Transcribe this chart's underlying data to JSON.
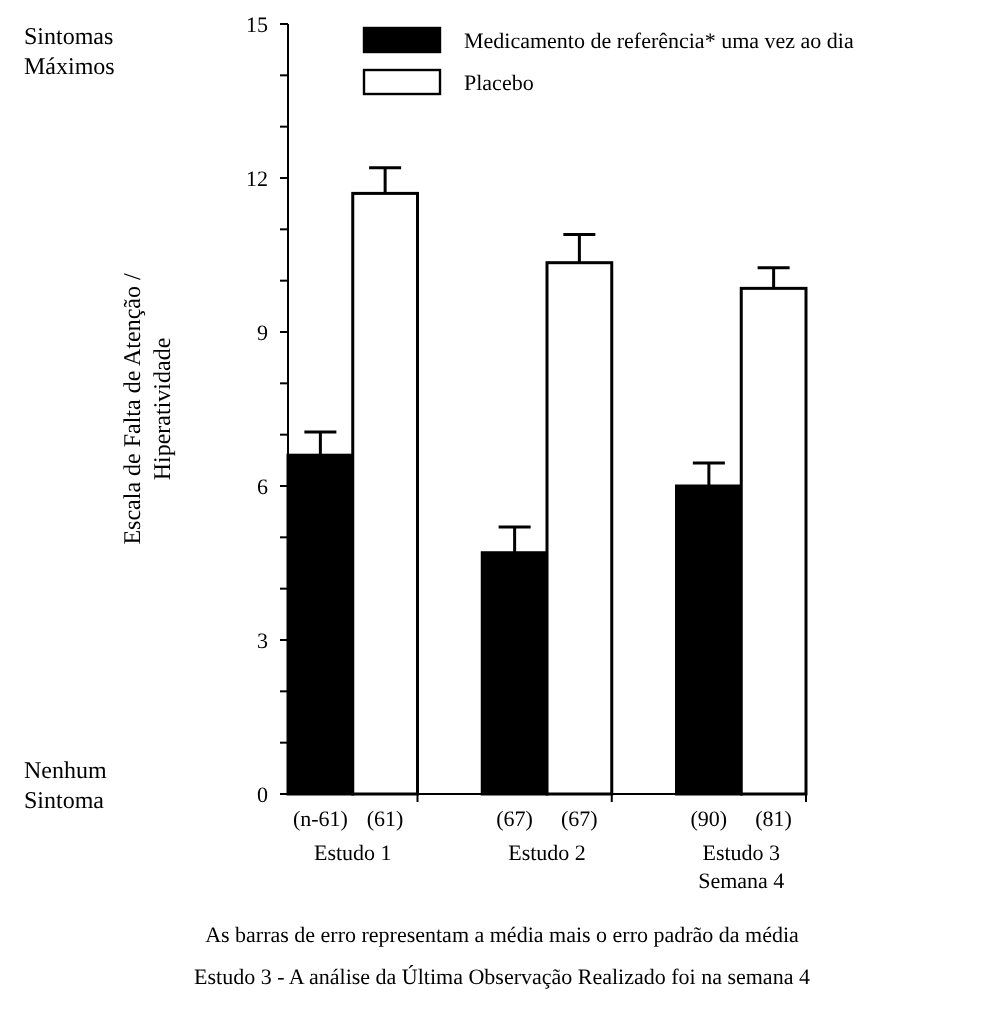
{
  "chart_data": {
    "type": "bar",
    "ylabel": "Escala de Falta de Atenção / Hiperatividade",
    "categories": [
      "Estudo 1",
      "Estudo 2",
      "Estudo 3\nSemana 4"
    ],
    "series": [
      {
        "name": "Medicamento de referência* uma vez ao dia",
        "color": "#000000",
        "values": [
          6.6,
          4.7,
          6.0
        ],
        "errors": [
          [
            6.6,
            7.05
          ],
          [
            4.7,
            5.2
          ],
          [
            6.0,
            6.45
          ]
        ]
      },
      {
        "name": "Placebo",
        "color": "#ffffff",
        "values": [
          11.7,
          10.35,
          9.85
        ],
        "errors": [
          [
            11.7,
            12.2
          ],
          [
            10.35,
            10.9
          ],
          [
            9.85,
            10.25
          ]
        ]
      }
    ],
    "ylim": [
      0,
      15
    ],
    "yticks": [
      0,
      {
        "value": 1,
        "label": null
      },
      {
        "value": 2,
        "label": null
      },
      3,
      {
        "value": 4,
        "label": null
      },
      {
        "value": 5,
        "label": null
      },
      6,
      {
        "value": 7,
        "label": null
      },
      {
        "value": 8,
        "label": null
      },
      9,
      {
        "value": 10,
        "label": null
      },
      {
        "value": 11,
        "label": null
      },
      12,
      {
        "value": 13,
        "label": null
      },
      {
        "value": 14,
        "label": null
      },
      15
    ],
    "legend": "top right",
    "annotations": [
      "Sintomas Máximos",
      "Nenhum Sintoma",
      "(n-61)",
      "(61)",
      "(67)",
      "(67)",
      "(90)",
      "(81)",
      "As barras de erro representam a média mais o erro padrão da média",
      "Estudo 3 - A análise da Última Observação Realizado foi na semana 4"
    ]
  }
}
